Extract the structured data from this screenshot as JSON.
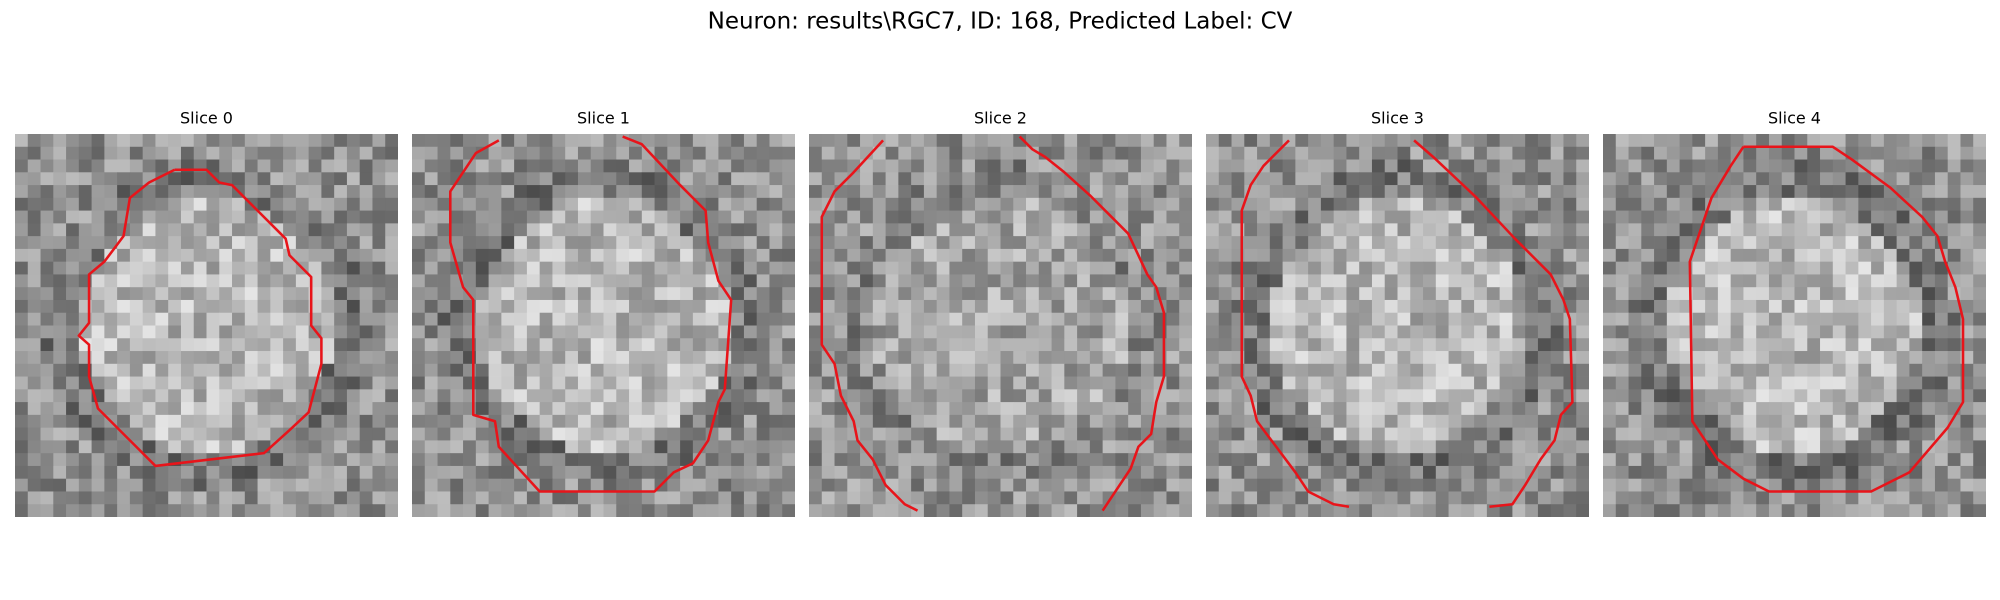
{
  "title": "Neuron: results\\RGC7, ID: 168, Predicted Label: CV",
  "panels": [
    {
      "title": "Slice 0"
    },
    {
      "title": "Slice 1"
    },
    {
      "title": "Slice 2"
    },
    {
      "title": "Slice 3"
    },
    {
      "title": "Slice 4"
    }
  ]
}
